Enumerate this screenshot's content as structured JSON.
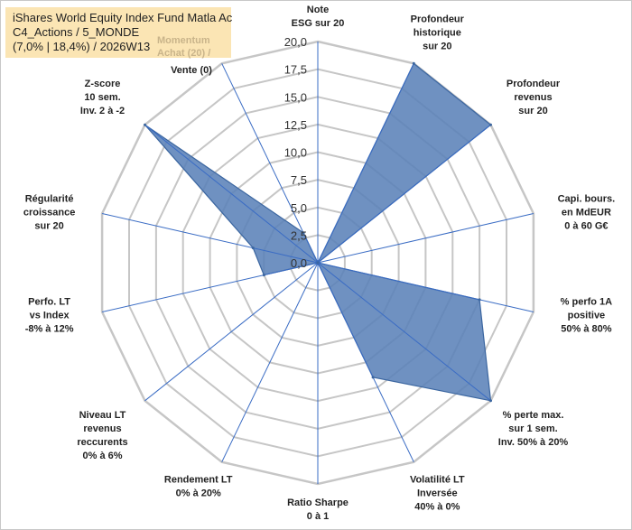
{
  "title_box": {
    "line1": "iShares World Equity Index Fund Matla Ac",
    "line2": "C4_Actions / 5_MONDE",
    "line3": "(7,0% | 18,4%) / 2026W13",
    "momentum_line1": "Momentum",
    "momentum_line2": "Achat (20) /",
    "momentum_line3": "Vente (0)"
  },
  "chart_data": {
    "type": "radar",
    "title": "iShares World Equity Index Fund Matla Ac",
    "range": [
      0,
      20
    ],
    "tick_step": 2.5,
    "tick_labels": [
      "0,0",
      "2,5",
      "5,0",
      "7,5",
      "10,0",
      "12,5",
      "15,0",
      "17,5",
      "20,0"
    ],
    "axes": [
      {
        "label": "Note ESG sur 20",
        "lines": [
          "Note",
          "ESG sur 20"
        ],
        "value": 0
      },
      {
        "label": "Profondeur historique sur 20",
        "lines": [
          "Profondeur",
          "historique",
          "sur 20"
        ],
        "value": 20
      },
      {
        "label": "Profondeur revenus sur 20",
        "lines": [
          "Profondeur",
          "revenus",
          "sur 20"
        ],
        "value": 20
      },
      {
        "label": "Capi. bours. en MdEUR 0 à 60 G€",
        "lines": [
          "Capi. bours.",
          "en MdEUR",
          "0 à 60 G€"
        ],
        "value": 0
      },
      {
        "label": "% perfo 1A positive 50% à 80%",
        "lines": [
          "% perfo 1A",
          "positive",
          "50% à 80%"
        ],
        "value": 15
      },
      {
        "label": "% perte max. sur 1 sem. Inv. 50% à 20%",
        "lines": [
          "% perte max.",
          "sur 1 sem.",
          "Inv. 50% à 20%"
        ],
        "value": 20
      },
      {
        "label": "Volatilité LT Inversée 40% à 0%",
        "lines": [
          "Volatilité LT",
          "Inversée",
          "40% à 0%"
        ],
        "value": 11.5
      },
      {
        "label": "Ratio Sharpe 0 à 1",
        "lines": [
          "Ratio Sharpe",
          "0 à 1"
        ],
        "value": 0
      },
      {
        "label": "Rendement LT 0% à 20%",
        "lines": [
          "Rendement LT",
          "0% à 20%"
        ],
        "value": 0
      },
      {
        "label": "Niveau LT revenus reccurents 0% à 6%",
        "lines": [
          "Niveau LT",
          "revenus",
          "reccurents",
          "0% à 6%"
        ],
        "value": 0
      },
      {
        "label": "Perfo. LT vs Index -8% à 12%",
        "lines": [
          "Perfo. LT",
          "vs Index",
          "-8% à 12%"
        ],
        "value": 5
      },
      {
        "label": "Régularité croissance sur 20",
        "lines": [
          "Régularité",
          "croissance",
          "sur 20"
        ],
        "value": 6
      },
      {
        "label": "Z-score 10 sem. Inv. 2 à -2",
        "lines": [
          "Z-score",
          "10 sem.",
          "Inv. 2 à -2"
        ],
        "value": 20
      },
      {
        "label": "Momentum Achat (20) / Vente (0)",
        "lines": [
          "Momentum",
          "Achat (20) /",
          "Vente (0)"
        ],
        "value": 3
      }
    ],
    "colors": {
      "fill": "#5b82b8",
      "stroke": "#3b66a0",
      "grid": "#c6c6c6",
      "spoke": "#3a6cc4"
    }
  }
}
